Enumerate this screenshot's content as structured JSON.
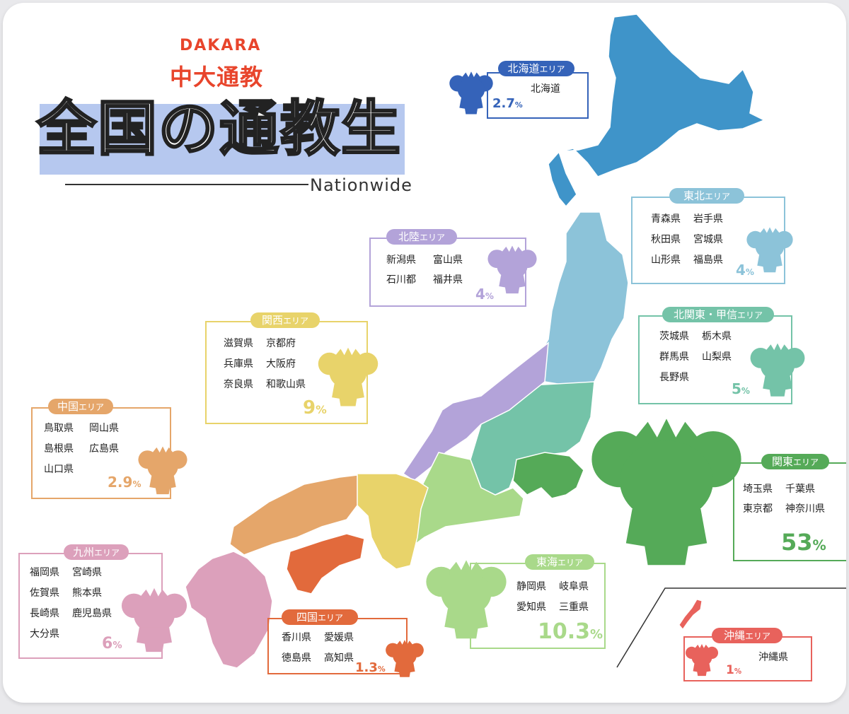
{
  "logo": {
    "brand": "DAKARA",
    "name": "中大通教"
  },
  "title": {
    "main": "全国の通教生",
    "sub": "Nationwide"
  },
  "colors": {
    "hokkaido": "#3f94c9",
    "tohoku": "#8cc3d9",
    "hokuriku": "#b3a3d9",
    "kitakanto": "#74c3a8",
    "kanto": "#55aa58",
    "tokai": "#a9d98a",
    "kansai": "#e8d36a",
    "chugoku": "#e5a66a",
    "shikoku": "#e26a3c",
    "kyushu": "#dca0bb",
    "okinawa": "#e8625c",
    "hokkaido_box": "#3563b9"
  },
  "areas": [
    {
      "id": "hokkaido",
      "label": "北海道",
      "suffix": "エリア",
      "prefectures": [
        "北海道"
      ],
      "percent": "2.7"
    },
    {
      "id": "tohoku",
      "label": "東北",
      "suffix": "エリア",
      "prefectures": [
        "青森県",
        "岩手県",
        "秋田県",
        "宮城県",
        "山形県",
        "福島県"
      ],
      "percent": "4"
    },
    {
      "id": "hokuriku",
      "label": "北陸",
      "suffix": "エリア",
      "prefectures": [
        "新潟県",
        "富山県",
        "石川都",
        "福井県"
      ],
      "percent": "4"
    },
    {
      "id": "kitakanto",
      "label": "北関東・甲信",
      "suffix": "エリア",
      "prefectures": [
        "茨城県",
        "栃木県",
        "群馬県",
        "山梨県",
        "長野県"
      ],
      "percent": "5"
    },
    {
      "id": "kansai",
      "label": "関西",
      "suffix": "エリア",
      "prefectures": [
        "滋賀県",
        "京都府",
        "兵庫県",
        "大阪府",
        "奈良県",
        "和歌山県"
      ],
      "percent": "9"
    },
    {
      "id": "chugoku",
      "label": "中国",
      "suffix": "エリア",
      "prefectures": [
        "鳥取県",
        "岡山県",
        "島根県",
        "広島県",
        "山口県"
      ],
      "percent": "2.9"
    },
    {
      "id": "kanto",
      "label": "関東",
      "suffix": "エリア",
      "prefectures": [
        "埼玉県",
        "千葉県",
        "東京都",
        "神奈川県"
      ],
      "percent": "53"
    },
    {
      "id": "tokai",
      "label": "東海",
      "suffix": "エリア",
      "prefectures": [
        "静岡県",
        "岐阜県",
        "愛知県",
        "三重県"
      ],
      "percent": "10.3"
    },
    {
      "id": "kyushu",
      "label": "九州",
      "suffix": "エリア",
      "prefectures": [
        "福岡県",
        "宮崎県",
        "佐賀県",
        "熊本県",
        "長崎県",
        "鹿児島県",
        "大分県"
      ],
      "percent": "6"
    },
    {
      "id": "shikoku",
      "label": "四国",
      "suffix": "エリア",
      "prefectures": [
        "香川県",
        "愛媛県",
        "徳島県",
        "高知県"
      ],
      "percent": "1.3"
    },
    {
      "id": "okinawa",
      "label": "沖縄",
      "suffix": "エリア",
      "prefectures": [
        "沖縄県"
      ],
      "percent": "1"
    }
  ],
  "percent_unit": "%"
}
